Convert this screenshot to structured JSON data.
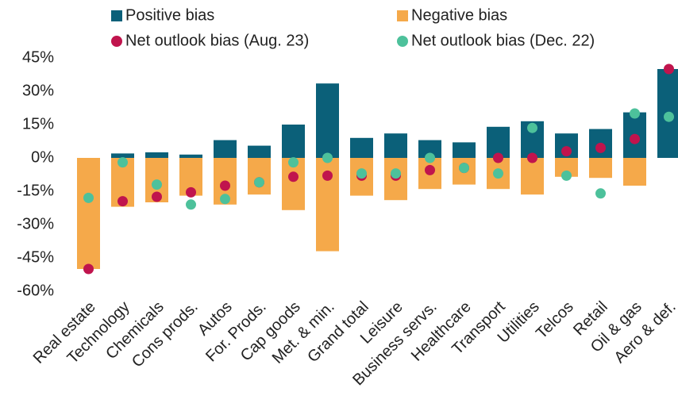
{
  "chart_data": {
    "type": "bar-dot",
    "categories": [
      "Real estate",
      "Technology",
      "Chemicals",
      "Cons prods.",
      "Autos",
      "For. Prods.",
      "Cap goods",
      "Met. & min.",
      "Grand total",
      "Leisure",
      "Business servs.",
      "Healthcare",
      "Transport",
      "Utilities",
      "Telcos",
      "Retail",
      "Oil & gas",
      "Aero & def."
    ],
    "series": [
      {
        "name": "Positive bias",
        "kind": "bar",
        "color": "#0b6079",
        "values": [
          0,
          2,
          2.5,
          1.5,
          8,
          5.5,
          15,
          33.5,
          9,
          11,
          8,
          7,
          14,
          16.5,
          11,
          13,
          20.5,
          40
        ]
      },
      {
        "name": "Negative bias",
        "kind": "bar",
        "color": "#f5a94a",
        "values": [
          -50,
          -22,
          -20,
          -17,
          -21,
          -16.5,
          -23.5,
          -42,
          -17,
          -19,
          -14,
          -12,
          -14,
          -16.5,
          -8.5,
          -9,
          -12.5,
          0
        ]
      },
      {
        "name": "Net outlook bias (Aug. 23)",
        "kind": "dot",
        "color": "#c0144d",
        "values": [
          -50,
          -19.5,
          -17.5,
          -15.5,
          -12.5,
          -11,
          -8.5,
          -8,
          -8,
          -8,
          -5.5,
          -4.5,
          0,
          0,
          3,
          4.5,
          8.5,
          40
        ]
      },
      {
        "name": "Net outlook bias (Dec. 22)",
        "kind": "dot",
        "color": "#4dc19b",
        "values": [
          -18,
          -2,
          -12,
          -21,
          -18.5,
          -11,
          -2,
          0,
          -7,
          -7,
          0,
          -4.5,
          -7,
          13.5,
          -8,
          -16,
          20,
          18.5
        ]
      }
    ],
    "ylim": [
      -60,
      45
    ],
    "yticks": [
      {
        "value": -60,
        "label": "-60%"
      },
      {
        "value": -45,
        "label": "-45%"
      },
      {
        "value": -30,
        "label": "-30%"
      },
      {
        "value": -15,
        "label": "-15%"
      },
      {
        "value": 0,
        "label": "0%"
      },
      {
        "value": 15,
        "label": "15%"
      },
      {
        "value": 30,
        "label": "30%"
      },
      {
        "value": 45,
        "label": "45%"
      }
    ]
  }
}
